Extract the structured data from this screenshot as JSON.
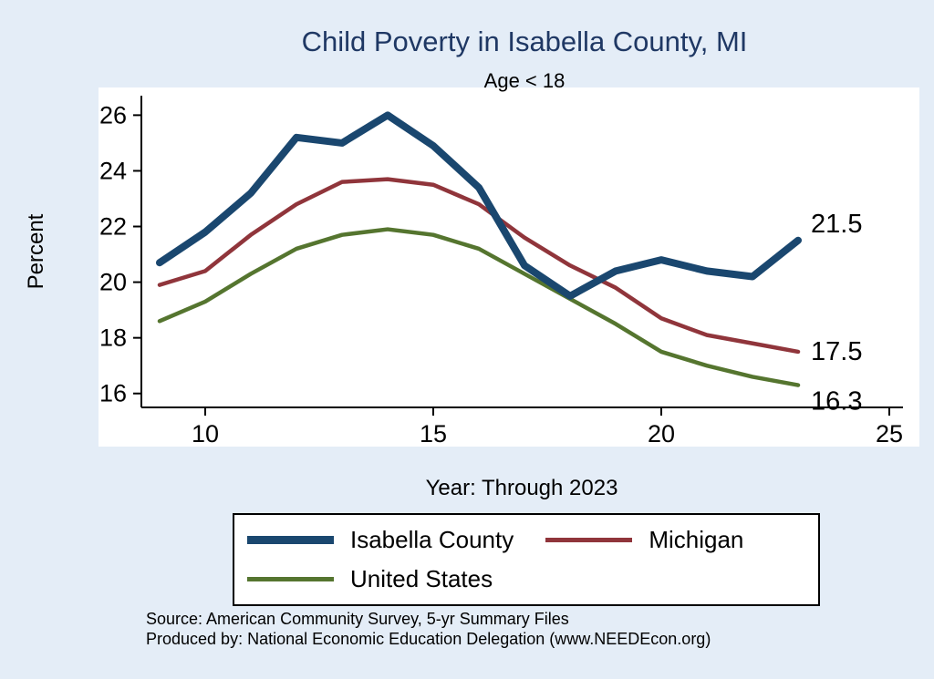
{
  "title": "Child Poverty in Isabella County, MI",
  "subtitle": "Age < 18",
  "ylabel": "Percent",
  "xlabel": "Year: Through 2023",
  "source_line1": "Source: American Community Survey, 5-yr Summary Files",
  "source_line2": "Produced by: National Economic Education Delegation (www.NEEDEcon.org)",
  "colors": {
    "background": "#e4edf7",
    "plot_bg": "#ffffff",
    "title": "#1f3864",
    "axis": "#000000",
    "isabella": "#1a476f",
    "michigan": "#90353b",
    "united_states": "#55752f"
  },
  "chart_data": {
    "type": "line",
    "title": "Child Poverty in Isabella County, MI",
    "subtitle": "Age < 18",
    "xlabel": "Year: Through 2023",
    "ylabel": "Percent",
    "grid": false,
    "legend_position": "bottom",
    "x": [
      9,
      10,
      11,
      12,
      13,
      14,
      15,
      16,
      17,
      18,
      19,
      20,
      21,
      22,
      23
    ],
    "xlim": [
      8.6,
      25.3
    ],
    "ylim": [
      15.5,
      26.7
    ],
    "xticks": [
      10,
      15,
      20,
      25
    ],
    "yticks": [
      16,
      18,
      20,
      22,
      24,
      26
    ],
    "series": [
      {
        "name": "Isabella County",
        "color": "#1a476f",
        "width": 8,
        "values": [
          20.7,
          21.8,
          23.2,
          25.2,
          25.0,
          26.0,
          24.9,
          23.4,
          20.6,
          19.5,
          20.4,
          20.8,
          20.4,
          20.2,
          21.5
        ],
        "end_label": "21.5"
      },
      {
        "name": "Michigan",
        "color": "#90353b",
        "width": 4.5,
        "values": [
          19.9,
          20.4,
          21.7,
          22.8,
          23.6,
          23.7,
          23.5,
          22.8,
          21.6,
          20.6,
          19.8,
          18.7,
          18.1,
          17.8,
          17.5
        ],
        "end_label": "17.5"
      },
      {
        "name": "United States",
        "color": "#55752f",
        "width": 4.5,
        "values": [
          18.6,
          19.3,
          20.3,
          21.2,
          21.7,
          21.9,
          21.7,
          21.2,
          20.3,
          19.4,
          18.5,
          17.5,
          17.0,
          16.6,
          16.3
        ],
        "end_label": "16.3"
      }
    ]
  }
}
